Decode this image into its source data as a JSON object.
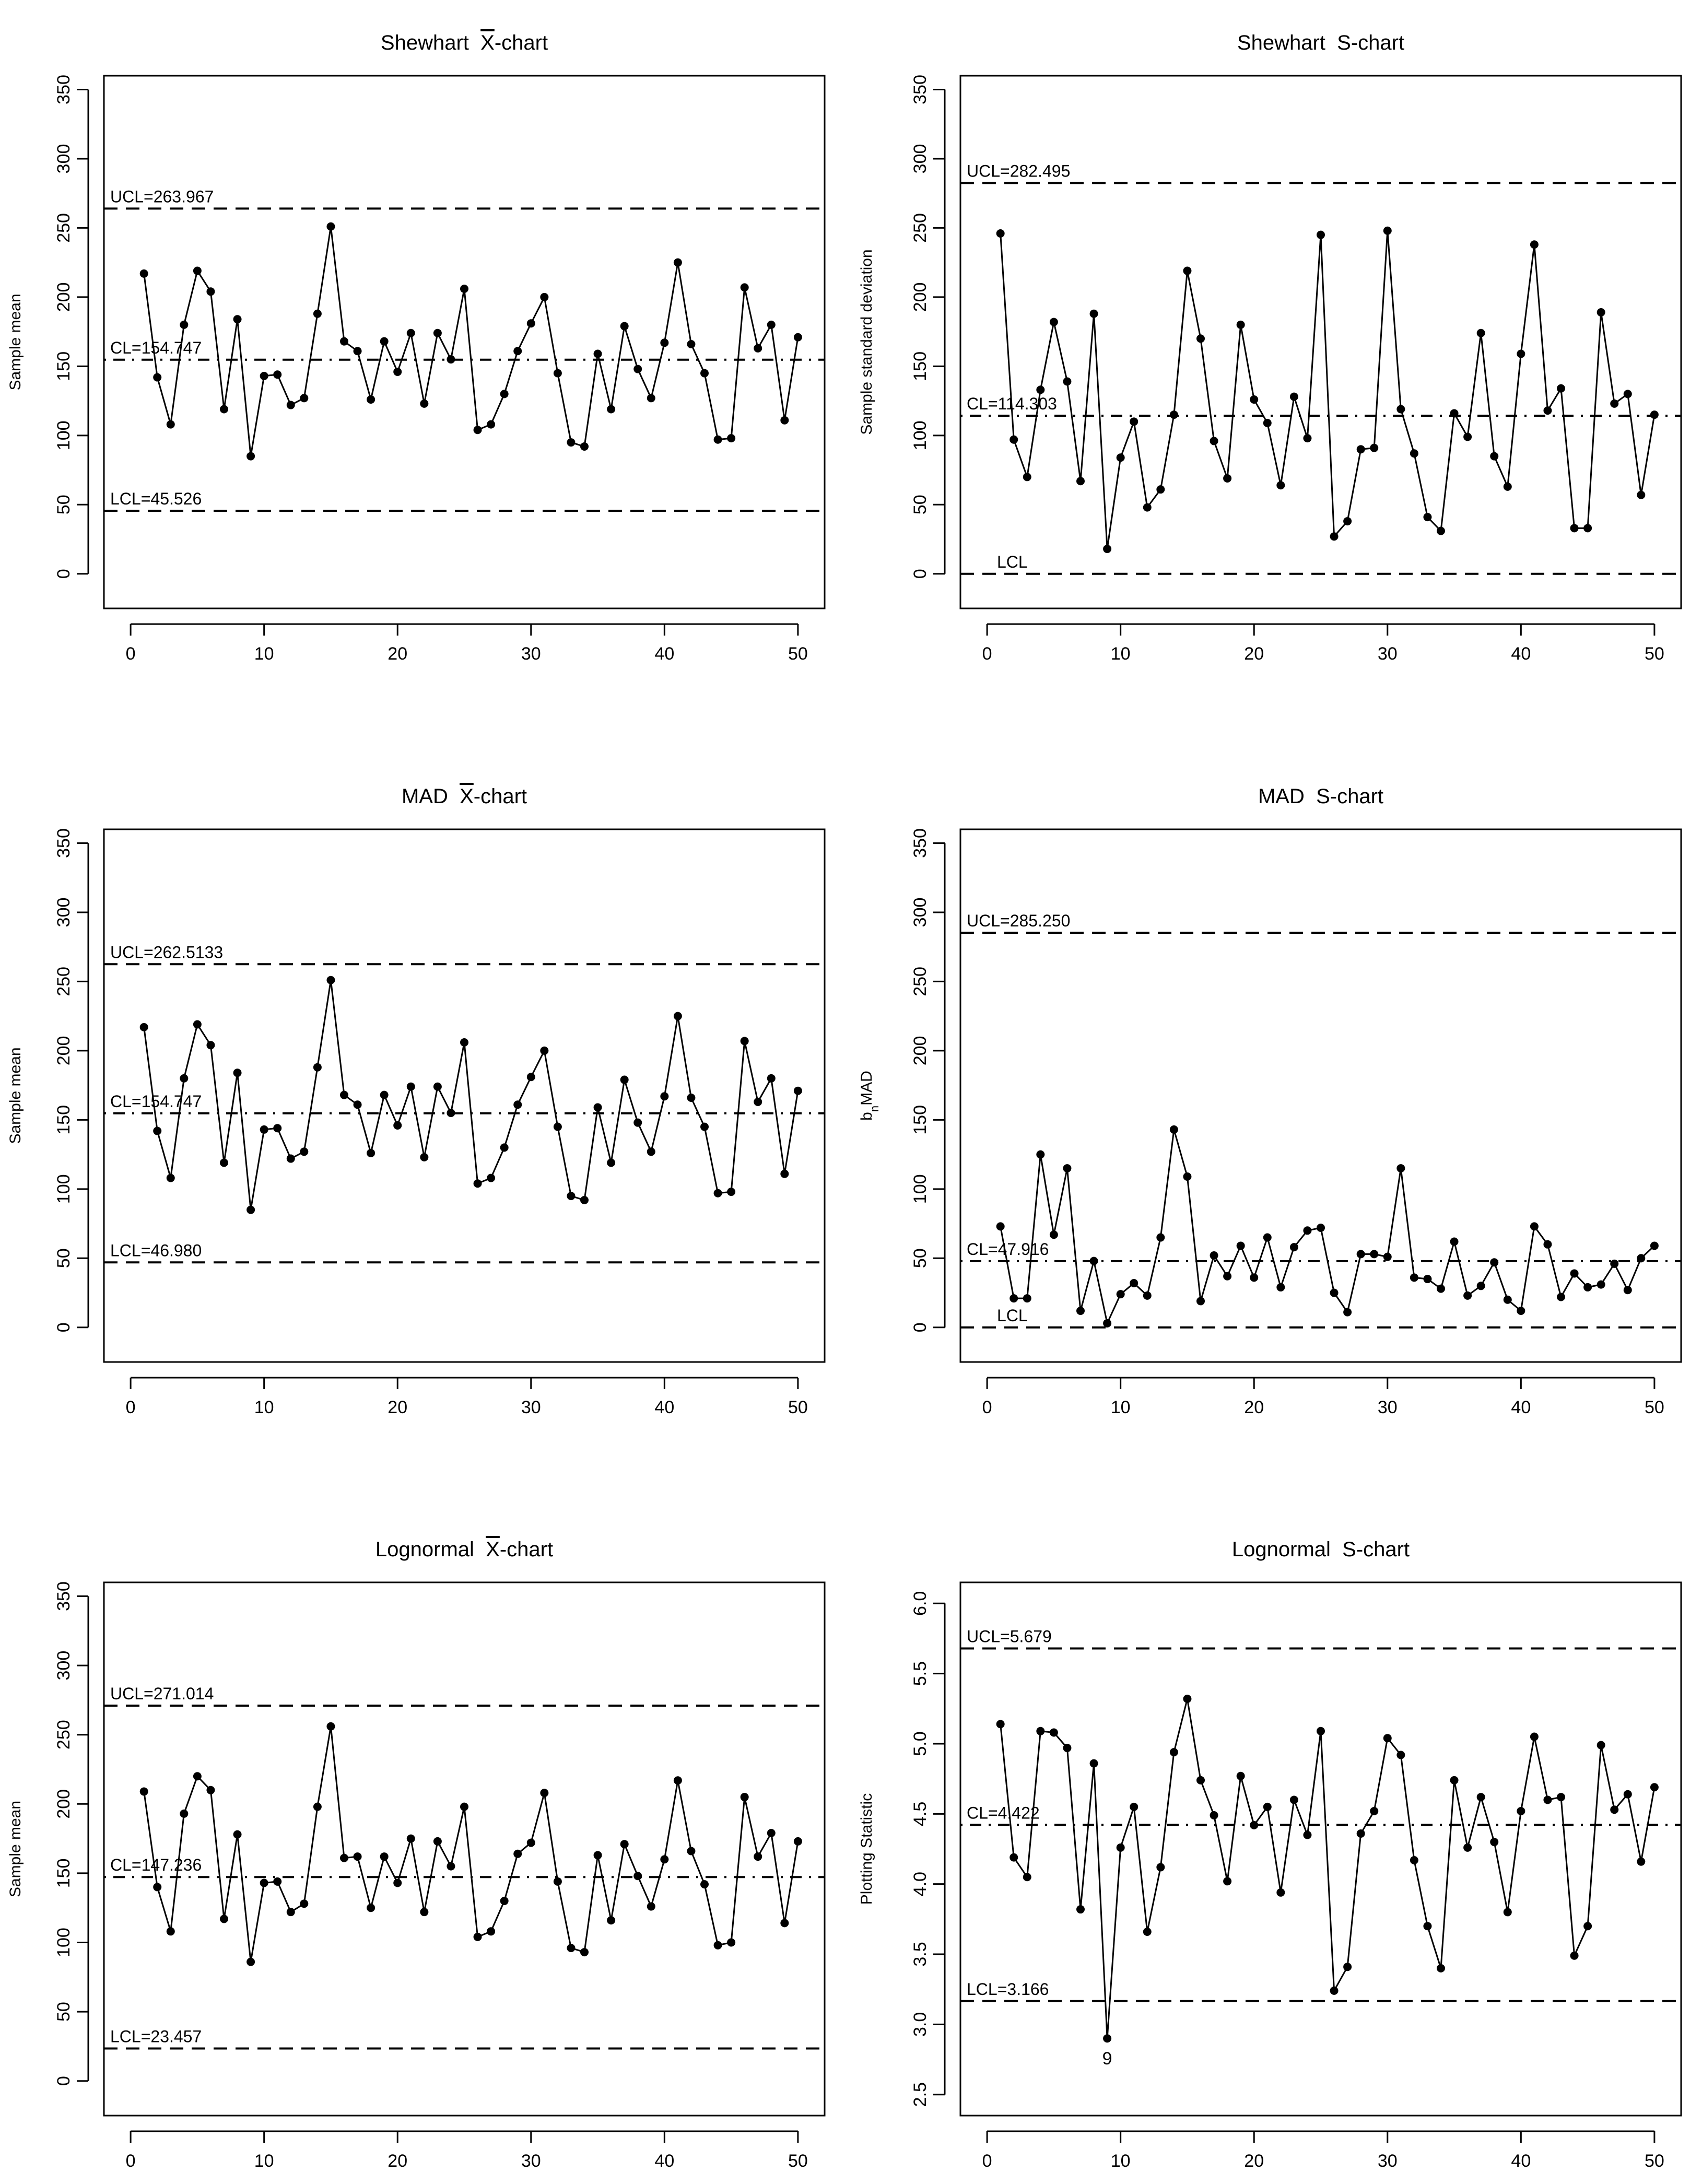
{
  "chart_data": [
    {
      "type": "line",
      "title_prefix": "Shewhart",
      "title_stat": "X",
      "title_suffix": "-chart",
      "title_overline": true,
      "xlabel": "",
      "ylabel": "Sample mean",
      "xlim": [
        -2,
        52
      ],
      "ylim": [
        -25,
        360
      ],
      "xticks": [
        0,
        10,
        20,
        30,
        40,
        50
      ],
      "xtick_labels": [
        "0",
        "10",
        "20",
        "30",
        "40",
        "50"
      ],
      "yticks": [
        0,
        50,
        100,
        150,
        200,
        250,
        300,
        350
      ],
      "ytick_labels": [
        "0",
        "50",
        "100",
        "150",
        "200",
        "250",
        "300",
        "350"
      ],
      "ylabel_sub": "",
      "ylabel_rest": "",
      "x": [
        1,
        2,
        3,
        4,
        5,
        6,
        7,
        8,
        9,
        10,
        11,
        12,
        13,
        14,
        15,
        16,
        17,
        18,
        19,
        20,
        21,
        22,
        23,
        24,
        25,
        26,
        27,
        28,
        29,
        30,
        31,
        32,
        33,
        34,
        35,
        36,
        37,
        38,
        39,
        40,
        41,
        42,
        43,
        44,
        45,
        46,
        47,
        48,
        49,
        50
      ],
      "values": [
        217,
        142,
        108,
        180,
        219,
        204,
        119,
        184,
        85,
        143,
        144,
        122,
        127,
        188,
        251,
        168,
        161,
        126,
        168,
        146,
        174,
        123,
        174,
        155,
        206,
        104,
        108,
        130,
        161,
        181,
        200,
        145,
        95,
        92,
        159,
        119,
        179,
        148,
        127,
        167,
        225,
        166,
        145,
        97,
        98,
        207,
        163,
        180,
        111,
        171
      ],
      "ref_lines": [
        {
          "name": "ucl",
          "value": 263.967,
          "label": "UCL=263.967",
          "style": "dashed"
        },
        {
          "name": "cl",
          "value": 154.747,
          "label": "CL=154.747",
          "style": "dotdash"
        },
        {
          "name": "lcl",
          "value": 45.526,
          "label": "LCL=45.526",
          "style": "dashed"
        }
      ],
      "annotations": []
    },
    {
      "type": "line",
      "title_prefix": "Shewhart",
      "title_stat": "S",
      "title_suffix": "-chart",
      "title_overline": false,
      "xlabel": "",
      "ylabel": "Sample standard deviation",
      "xlim": [
        -2,
        52
      ],
      "ylim": [
        -25,
        360
      ],
      "xticks": [
        0,
        10,
        20,
        30,
        40,
        50
      ],
      "xtick_labels": [
        "0",
        "10",
        "20",
        "30",
        "40",
        "50"
      ],
      "yticks": [
        0,
        50,
        100,
        150,
        200,
        250,
        300,
        350
      ],
      "ytick_labels": [
        "0",
        "50",
        "100",
        "150",
        "200",
        "250",
        "300",
        "350"
      ],
      "ylabel_sub": "",
      "ylabel_rest": "",
      "x": [
        1,
        2,
        3,
        4,
        5,
        6,
        7,
        8,
        9,
        10,
        11,
        12,
        13,
        14,
        15,
        16,
        17,
        18,
        19,
        20,
        21,
        22,
        23,
        24,
        25,
        26,
        27,
        28,
        29,
        30,
        31,
        32,
        33,
        34,
        35,
        36,
        37,
        38,
        39,
        40,
        41,
        42,
        43,
        44,
        45,
        46,
        47,
        48,
        49,
        50
      ],
      "values": [
        246,
        97,
        70,
        133,
        182,
        139,
        67,
        188,
        18,
        84,
        110,
        48,
        61,
        115,
        219,
        170,
        96,
        69,
        180,
        126,
        109,
        64,
        128,
        98,
        245,
        27,
        38,
        90,
        91,
        248,
        119,
        87,
        41,
        31,
        116,
        99,
        174,
        85,
        63,
        159,
        238,
        118,
        134,
        33,
        33,
        189,
        123,
        130,
        57,
        115
      ],
      "ref_lines": [
        {
          "name": "ucl",
          "value": 282.495,
          "label": "UCL=282.495",
          "style": "dashed"
        },
        {
          "name": "cl",
          "value": 114.303,
          "label": "CL=114.303",
          "style": "dotdash"
        },
        {
          "name": "lcl",
          "value": 0,
          "label": "LCL",
          "style": "dashed"
        }
      ],
      "annotations": []
    },
    {
      "type": "line",
      "title_prefix": "MAD",
      "title_stat": "X",
      "title_suffix": "-chart",
      "title_overline": true,
      "xlabel": "",
      "ylabel": "Sample mean",
      "xlim": [
        -2,
        52
      ],
      "ylim": [
        -25,
        360
      ],
      "xticks": [
        0,
        10,
        20,
        30,
        40,
        50
      ],
      "xtick_labels": [
        "0",
        "10",
        "20",
        "30",
        "40",
        "50"
      ],
      "yticks": [
        0,
        50,
        100,
        150,
        200,
        250,
        300,
        350
      ],
      "ytick_labels": [
        "0",
        "50",
        "100",
        "150",
        "200",
        "250",
        "300",
        "350"
      ],
      "ylabel_sub": "",
      "ylabel_rest": "",
      "x": [
        1,
        2,
        3,
        4,
        5,
        6,
        7,
        8,
        9,
        10,
        11,
        12,
        13,
        14,
        15,
        16,
        17,
        18,
        19,
        20,
        21,
        22,
        23,
        24,
        25,
        26,
        27,
        28,
        29,
        30,
        31,
        32,
        33,
        34,
        35,
        36,
        37,
        38,
        39,
        40,
        41,
        42,
        43,
        44,
        45,
        46,
        47,
        48,
        49,
        50
      ],
      "values": [
        217,
        142,
        108,
        180,
        219,
        204,
        119,
        184,
        85,
        143,
        144,
        122,
        127,
        188,
        251,
        168,
        161,
        126,
        168,
        146,
        174,
        123,
        174,
        155,
        206,
        104,
        108,
        130,
        161,
        181,
        200,
        145,
        95,
        92,
        159,
        119,
        179,
        148,
        127,
        167,
        225,
        166,
        145,
        97,
        98,
        207,
        163,
        180,
        111,
        171
      ],
      "ref_lines": [
        {
          "name": "ucl",
          "value": 262.5133,
          "label": "UCL=262.5133",
          "style": "dashed"
        },
        {
          "name": "cl",
          "value": 154.747,
          "label": "CL=154.747",
          "style": "dotdash"
        },
        {
          "name": "lcl",
          "value": 46.98,
          "label": "LCL=46.980",
          "style": "dashed"
        }
      ],
      "annotations": []
    },
    {
      "type": "line",
      "title_prefix": "MAD",
      "title_stat": "S",
      "title_suffix": "-chart",
      "title_overline": false,
      "xlabel": "",
      "ylabel": "bnMAD",
      "xlim": [
        -2,
        52
      ],
      "ylim": [
        -25,
        360
      ],
      "xticks": [
        0,
        10,
        20,
        30,
        40,
        50
      ],
      "xtick_labels": [
        "0",
        "10",
        "20",
        "30",
        "40",
        "50"
      ],
      "yticks": [
        0,
        50,
        100,
        150,
        200,
        250,
        300,
        350
      ],
      "ytick_labels": [
        "0",
        "50",
        "100",
        "150",
        "200",
        "250",
        "300",
        "350"
      ],
      "ylabel_sub": "n",
      "ylabel_rest": "MAD",
      "x": [
        1,
        2,
        3,
        4,
        5,
        6,
        7,
        8,
        9,
        10,
        11,
        12,
        13,
        14,
        15,
        16,
        17,
        18,
        19,
        20,
        21,
        22,
        23,
        24,
        25,
        26,
        27,
        28,
        29,
        30,
        31,
        32,
        33,
        34,
        35,
        36,
        37,
        38,
        39,
        40,
        41,
        42,
        43,
        44,
        45,
        46,
        47,
        48,
        49,
        50
      ],
      "values": [
        73,
        21,
        21,
        125,
        67,
        115,
        12,
        48,
        3,
        24,
        32,
        23,
        65,
        143,
        109,
        19,
        52,
        37,
        59,
        36,
        65,
        29,
        58,
        70,
        72,
        25,
        11,
        53,
        53,
        51,
        115,
        36,
        35,
        28,
        62,
        23,
        30,
        47,
        20,
        12,
        73,
        60,
        22,
        39,
        29,
        31,
        46,
        27,
        50,
        59
      ],
      "ref_lines": [
        {
          "name": "ucl",
          "value": 285.25,
          "label": "UCL=285.250",
          "style": "dashed"
        },
        {
          "name": "cl",
          "value": 47.916,
          "label": "CL=47.916",
          "style": "dotdash"
        },
        {
          "name": "lcl",
          "value": 0,
          "label": "LCL",
          "style": "dashed"
        }
      ],
      "annotations": []
    },
    {
      "type": "line",
      "title_prefix": "Lognormal",
      "title_stat": "X",
      "title_suffix": "-chart",
      "title_overline": true,
      "xlabel": "",
      "ylabel": "Sample mean",
      "xlim": [
        -2,
        52
      ],
      "ylim": [
        -25,
        360
      ],
      "xticks": [
        0,
        10,
        20,
        30,
        40,
        50
      ],
      "xtick_labels": [
        "0",
        "10",
        "20",
        "30",
        "40",
        "50"
      ],
      "yticks": [
        0,
        50,
        100,
        150,
        200,
        250,
        300,
        350
      ],
      "ytick_labels": [
        "0",
        "50",
        "100",
        "150",
        "200",
        "250",
        "300",
        "350"
      ],
      "ylabel_sub": "",
      "ylabel_rest": "",
      "x": [
        1,
        2,
        3,
        4,
        5,
        6,
        7,
        8,
        9,
        10,
        11,
        12,
        13,
        14,
        15,
        16,
        17,
        18,
        19,
        20,
        21,
        22,
        23,
        24,
        25,
        26,
        27,
        28,
        29,
        30,
        31,
        32,
        33,
        34,
        35,
        36,
        37,
        38,
        39,
        40,
        41,
        42,
        43,
        44,
        45,
        46,
        47,
        48,
        49,
        50
      ],
      "values": [
        209,
        140,
        108,
        193,
        220,
        210,
        117,
        178,
        86,
        143,
        144,
        122,
        128,
        198,
        256,
        161,
        162,
        125,
        162,
        143,
        175,
        122,
        173,
        155,
        198,
        104,
        108,
        130,
        164,
        172,
        208,
        144,
        96,
        93,
        163,
        116,
        171,
        148,
        126,
        160,
        217,
        166,
        142,
        98,
        100,
        205,
        162,
        179,
        114,
        173
      ],
      "ref_lines": [
        {
          "name": "ucl",
          "value": 271.014,
          "label": "UCL=271.014",
          "style": "dashed"
        },
        {
          "name": "cl",
          "value": 147.236,
          "label": "CL=147.236",
          "style": "dotdash"
        },
        {
          "name": "lcl",
          "value": 23.457,
          "label": "LCL=23.457",
          "style": "dashed"
        }
      ],
      "annotations": []
    },
    {
      "type": "line",
      "title_prefix": "Lognormal",
      "title_stat": "S",
      "title_suffix": "-chart",
      "title_overline": false,
      "xlabel": "",
      "ylabel": "Plotting Statistic",
      "xlim": [
        -2,
        52
      ],
      "ylim": [
        2.35,
        6.15
      ],
      "xticks": [
        0,
        10,
        20,
        30,
        40,
        50
      ],
      "xtick_labels": [
        "0",
        "10",
        "20",
        "30",
        "40",
        "50"
      ],
      "yticks": [
        2.5,
        3.0,
        3.5,
        4.0,
        4.5,
        5.0,
        5.5,
        6.0
      ],
      "ytick_labels": [
        "2.5",
        "3.0",
        "3.5",
        "4.0",
        "4.5",
        "5.0",
        "5.5",
        "6.0"
      ],
      "ylabel_sub": "",
      "ylabel_rest": "",
      "x": [
        1,
        2,
        3,
        4,
        5,
        6,
        7,
        8,
        9,
        10,
        11,
        12,
        13,
        14,
        15,
        16,
        17,
        18,
        19,
        20,
        21,
        22,
        23,
        24,
        25,
        26,
        27,
        28,
        29,
        30,
        31,
        32,
        33,
        34,
        35,
        36,
        37,
        38,
        39,
        40,
        41,
        42,
        43,
        44,
        45,
        46,
        47,
        48,
        49,
        50
      ],
      "values": [
        5.14,
        4.19,
        4.05,
        5.09,
        5.08,
        4.97,
        3.82,
        4.86,
        2.9,
        4.26,
        4.55,
        3.66,
        4.12,
        4.94,
        5.32,
        4.74,
        4.49,
        4.02,
        4.77,
        4.42,
        4.55,
        3.94,
        4.6,
        4.35,
        5.09,
        3.24,
        3.41,
        4.36,
        4.52,
        5.04,
        4.92,
        4.17,
        3.7,
        3.4,
        4.74,
        4.26,
        4.62,
        4.3,
        3.8,
        4.52,
        5.05,
        4.6,
        4.62,
        3.49,
        3.7,
        4.99,
        4.53,
        4.64,
        4.16,
        4.69
      ],
      "ref_lines": [
        {
          "name": "ucl",
          "value": 5.679,
          "label": "UCL=5.679",
          "style": "dashed"
        },
        {
          "name": "cl",
          "value": 4.422,
          "label": "CL=4.422",
          "style": "dotdash"
        },
        {
          "name": "lcl",
          "value": 3.166,
          "label": "LCL=3.166",
          "style": "dashed"
        }
      ],
      "annotations": [
        {
          "index": 9,
          "label": "9"
        }
      ]
    }
  ]
}
